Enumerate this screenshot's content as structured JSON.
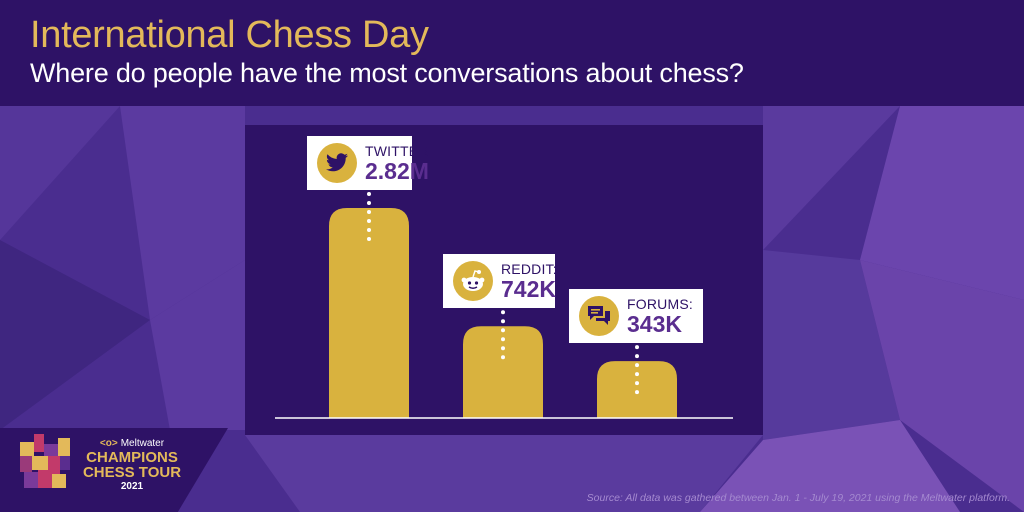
{
  "header": {
    "title": "International Chess Day",
    "subtitle": "Where do people have the most conversations about chess?"
  },
  "chart_data": {
    "type": "bar",
    "title": "",
    "xlabel": "",
    "ylabel": "",
    "categories": [
      "TWITTER:",
      "REDDIT:",
      "FORUMS:"
    ],
    "values": [
      2820000,
      742000,
      343000
    ],
    "value_labels": [
      "2.82M",
      "742K",
      "343K"
    ],
    "icons": [
      "twitter-bird-icon",
      "reddit-alien-icon",
      "forum-chat-icon"
    ],
    "axis_scale": "non-linear (bars not to scale)",
    "grid": false,
    "bar_color": "#d9b23e"
  },
  "branding": {
    "company": "Meltwater",
    "line1": "CHAMPIONS",
    "line2": "CHESS TOUR",
    "year": "2021"
  },
  "footer": {
    "source": "Source: All data was gathered between Jan. 1 - July 19, 2021 using the Meltwater platform."
  },
  "colors": {
    "header_bg": "#2e1266",
    "accent_gold": "#e3b95a",
    "bar_gold": "#d9b23e",
    "value_purple": "#5a2d8f"
  }
}
